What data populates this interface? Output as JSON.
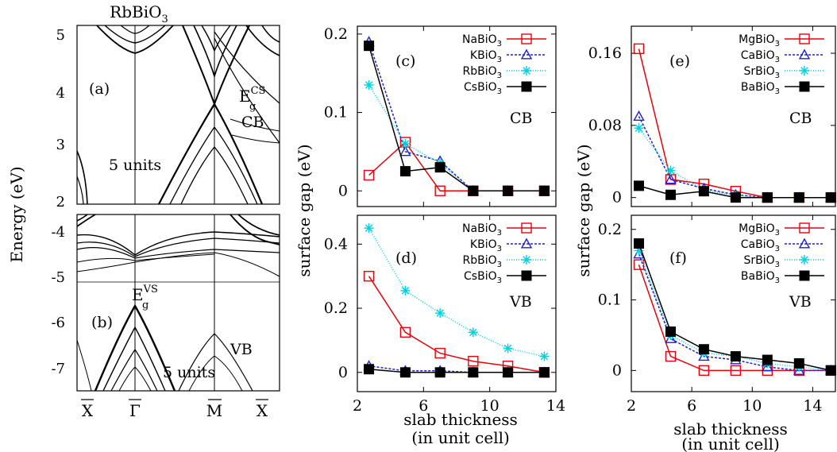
{
  "figure": {
    "material_title": "RbBiO",
    "material_title_sub": "3",
    "band_ylabel": "Energy (eV)",
    "gap_ylabel": "surface gap (eV)",
    "xlabel_line1": "slab thickness",
    "xlabel_line2": "(in unit cell)",
    "kpoints": [
      "X",
      "Γ",
      "M",
      "X"
    ]
  },
  "band_panels": [
    {
      "id": "a",
      "label": "(a)",
      "band_label": "CB",
      "units_label": "5 units",
      "gap_label": "E",
      "gap_sup": "CS",
      "gap_sub": "g",
      "ylim": [
        2,
        5.1
      ],
      "yticks": [
        "2",
        "3",
        "4",
        "5"
      ]
    },
    {
      "id": "b",
      "label": "(b)",
      "band_label": "VB",
      "units_label": "5 units",
      "gap_label": "E",
      "gap_sup": "VS",
      "gap_sub": "g",
      "ylim": [
        -7.5,
        -3.6
      ],
      "yticks": [
        "-4",
        "-5",
        "-6",
        "-7"
      ]
    }
  ],
  "chart_data": [
    {
      "id": "c",
      "type": "line",
      "panel_label": "(c)",
      "band_label": "CB",
      "xlim": [
        2,
        14
      ],
      "ylim": [
        -0.02,
        0.21
      ],
      "xticks": [],
      "yticks": [
        "0",
        "0.1",
        "0.2"
      ],
      "ytick_values": [
        0,
        0.1,
        0.2
      ],
      "series": [
        {
          "name": "NaBiO",
          "name_sub": "3",
          "color": "#e8000b",
          "marker": "square-open",
          "dash": "",
          "x": [
            2.7,
            4.9,
            7.0,
            9.0,
            11.1,
            13.3
          ],
          "y": [
            0.02,
            0.062,
            0.0,
            0.0,
            0.0,
            0.0
          ]
        },
        {
          "name": "KBiO",
          "name_sub": "3",
          "color": "#1f1fd4",
          "marker": "triangle-open",
          "dash": "3,2",
          "x": [
            2.7,
            4.9,
            7.0,
            9.0,
            11.1,
            13.3
          ],
          "y": [
            0.19,
            0.05,
            0.038,
            0.0,
            0.0,
            0.0
          ]
        },
        {
          "name": "RbBiO",
          "name_sub": "3",
          "color": "#00d0e0",
          "marker": "star",
          "dash": "1,2",
          "x": [
            2.7,
            4.9,
            7.0,
            9.0,
            11.1,
            13.3
          ],
          "y": [
            0.135,
            0.06,
            0.035,
            0.0,
            0.0,
            0.0
          ]
        },
        {
          "name": "CsBiO",
          "name_sub": "3",
          "color": "#000000",
          "marker": "square-filled",
          "dash": "",
          "x": [
            2.7,
            4.9,
            7.0,
            9.0,
            11.1,
            13.3
          ],
          "y": [
            0.185,
            0.025,
            0.03,
            0.0,
            0.0,
            0.0
          ]
        }
      ]
    },
    {
      "id": "d",
      "type": "line",
      "panel_label": "(d)",
      "band_label": "VB",
      "xlim": [
        2,
        14
      ],
      "ylim": [
        -0.06,
        0.49
      ],
      "xticks": [
        "2",
        "6",
        "10",
        "14"
      ],
      "xtick_values": [
        2,
        6,
        10,
        14
      ],
      "yticks": [
        "0",
        "0.2",
        "0.4"
      ],
      "ytick_values": [
        0,
        0.2,
        0.4
      ],
      "series": [
        {
          "name": "NaBiO",
          "name_sub": "3",
          "color": "#e8000b",
          "marker": "square-open",
          "dash": "",
          "x": [
            2.7,
            4.9,
            7.0,
            9.0,
            11.1,
            13.3
          ],
          "y": [
            0.3,
            0.125,
            0.06,
            0.035,
            0.02,
            0.0
          ]
        },
        {
          "name": "KBiO",
          "name_sub": "3",
          "color": "#1f1fd4",
          "marker": "triangle-open",
          "dash": "3,2",
          "x": [
            2.7,
            4.9,
            7.0,
            9.0,
            11.1,
            13.3
          ],
          "y": [
            0.02,
            0.005,
            0.005,
            0.0,
            0.0,
            0.0
          ]
        },
        {
          "name": "RbBiO",
          "name_sub": "3",
          "color": "#00d0e0",
          "marker": "star",
          "dash": "1,2",
          "x": [
            2.7,
            4.9,
            7.0,
            9.0,
            11.1,
            13.3
          ],
          "y": [
            0.45,
            0.255,
            0.185,
            0.125,
            0.075,
            0.05
          ]
        },
        {
          "name": "CsBiO",
          "name_sub": "3",
          "color": "#000000",
          "marker": "square-filled",
          "dash": "",
          "x": [
            2.7,
            4.9,
            7.0,
            9.0,
            11.1,
            13.3
          ],
          "y": [
            0.01,
            0.0,
            0.0,
            0.0,
            0.0,
            0.0
          ]
        }
      ]
    },
    {
      "id": "e",
      "type": "line",
      "panel_label": "(e)",
      "band_label": "CB",
      "xlim": [
        2,
        15.5
      ],
      "ylim": [
        -0.01,
        0.19
      ],
      "xticks": [],
      "yticks": [
        "0",
        "0.08",
        "0.16"
      ],
      "ytick_values": [
        0,
        0.08,
        0.16
      ],
      "series": [
        {
          "name": "MgBiO",
          "name_sub": "3",
          "color": "#e8000b",
          "marker": "square-open",
          "dash": "",
          "x": [
            2.5,
            4.6,
            6.8,
            8.9,
            11.0,
            13.1,
            15.2
          ],
          "y": [
            0.165,
            0.02,
            0.015,
            0.007,
            0.0,
            0.0,
            0.0
          ]
        },
        {
          "name": "CaBiO",
          "name_sub": "3",
          "color": "#1f1fd4",
          "marker": "triangle-open",
          "dash": "3,2",
          "x": [
            2.5,
            4.6,
            6.8,
            8.9,
            11.0,
            13.1,
            15.2
          ],
          "y": [
            0.09,
            0.02,
            0.01,
            0.003,
            0.0,
            0.0,
            0.0
          ]
        },
        {
          "name": "SrBiO",
          "name_sub": "3",
          "color": "#00d0e0",
          "marker": "star",
          "dash": "1,2",
          "x": [
            2.5,
            4.6,
            6.8,
            8.9,
            11.0,
            13.1,
            15.2
          ],
          "y": [
            0.077,
            0.03,
            0.008,
            0.002,
            0.0,
            0.0,
            0.0
          ]
        },
        {
          "name": "BaBiO",
          "name_sub": "3",
          "color": "#000000",
          "marker": "square-filled",
          "dash": "",
          "x": [
            2.5,
            4.6,
            6.8,
            8.9,
            11.0,
            13.1,
            15.2
          ],
          "y": [
            0.013,
            0.003,
            0.007,
            0.0,
            0.0,
            0.0,
            0.0
          ]
        }
      ]
    },
    {
      "id": "f",
      "type": "line",
      "panel_label": "(f)",
      "band_label": "VB",
      "xlim": [
        2,
        15.5
      ],
      "ylim": [
        -0.03,
        0.22
      ],
      "xticks": [
        "2",
        "6",
        "10",
        "14"
      ],
      "xtick_values": [
        2,
        6,
        10,
        14
      ],
      "yticks": [
        "0",
        "0.1",
        "0.2"
      ],
      "ytick_values": [
        0,
        0.1,
        0.2
      ],
      "series": [
        {
          "name": "MgBiO",
          "name_sub": "3",
          "color": "#e8000b",
          "marker": "square-open",
          "dash": "",
          "x": [
            2.5,
            4.6,
            6.8,
            8.9,
            11.0,
            13.1,
            15.2
          ],
          "y": [
            0.15,
            0.02,
            0.0,
            0.0,
            0.0,
            0.0,
            0.0
          ]
        },
        {
          "name": "CaBiO",
          "name_sub": "3",
          "color": "#1f1fd4",
          "marker": "triangle-open",
          "dash": "3,2",
          "x": [
            2.5,
            4.6,
            6.8,
            8.9,
            11.0,
            13.1,
            15.2
          ],
          "y": [
            0.165,
            0.045,
            0.02,
            0.015,
            0.005,
            0.0,
            0.0
          ]
        },
        {
          "name": "SrBiO",
          "name_sub": "3",
          "color": "#00d0e0",
          "marker": "star",
          "dash": "1,2",
          "x": [
            2.5,
            4.6,
            6.8,
            8.9,
            11.0,
            13.1,
            15.2
          ],
          "y": [
            0.17,
            0.05,
            0.025,
            0.02,
            0.01,
            0.005,
            0.0
          ]
        },
        {
          "name": "BaBiO",
          "name_sub": "3",
          "color": "#000000",
          "marker": "square-filled",
          "dash": "",
          "x": [
            2.5,
            4.6,
            6.8,
            8.9,
            11.0,
            13.1,
            15.2
          ],
          "y": [
            0.18,
            0.055,
            0.03,
            0.02,
            0.015,
            0.01,
            0.0
          ]
        }
      ]
    }
  ]
}
